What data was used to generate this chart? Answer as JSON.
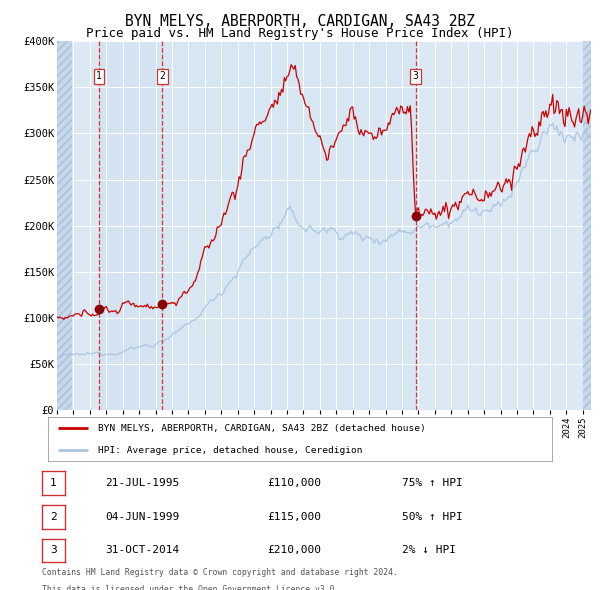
{
  "title": "BYN MELYS, ABERPORTH, CARDIGAN, SA43 2BZ",
  "subtitle": "Price paid vs. HM Land Registry's House Price Index (HPI)",
  "title_fontsize": 10.5,
  "subtitle_fontsize": 9.0,
  "background_color": "#ffffff",
  "plot_bg_color": "#dce9f5",
  "grid_color": "#ffffff",
  "ylim": [
    0,
    400000
  ],
  "yticks": [
    0,
    50000,
    100000,
    150000,
    200000,
    250000,
    300000,
    350000,
    400000
  ],
  "ytick_labels": [
    "£0",
    "£50K",
    "£100K",
    "£150K",
    "£200K",
    "£250K",
    "£300K",
    "£350K",
    "£400K"
  ],
  "hpi_color": "#aac4e0",
  "price_color": "#cc0000",
  "sale_dot_color": "#8b0000",
  "sale1_date": 1995.55,
  "sale1_price": 110000,
  "sale2_date": 1999.42,
  "sale2_price": 115000,
  "sale3_date": 2014.83,
  "sale3_price": 210000,
  "legend_line1": "BYN MELYS, ABERPORTH, CARDIGAN, SA43 2BZ (detached house)",
  "legend_line2": "HPI: Average price, detached house, Ceredigion",
  "table_rows": [
    {
      "num": "1",
      "date": "21-JUL-1995",
      "price": "£110,000",
      "pct": "75%",
      "arrow": "↑",
      "label": "HPI"
    },
    {
      "num": "2",
      "date": "04-JUN-1999",
      "price": "£115,000",
      "pct": "50%",
      "arrow": "↑",
      "label": "HPI"
    },
    {
      "num": "3",
      "date": "31-OCT-2014",
      "price": "£210,000",
      "pct": "2%",
      "arrow": "↓",
      "label": "HPI"
    }
  ],
  "footnote1": "Contains HM Land Registry data © Crown copyright and database right 2024.",
  "footnote2": "This data is licensed under the Open Government Licence v3.0.",
  "xmin": 1993.0,
  "xmax": 2025.5,
  "hpi_keypoints": [
    [
      1993.0,
      58000
    ],
    [
      1995.0,
      60000
    ],
    [
      1997.0,
      65000
    ],
    [
      1999.0,
      72000
    ],
    [
      2001.0,
      90000
    ],
    [
      2003.0,
      130000
    ],
    [
      2005.0,
      175000
    ],
    [
      2007.0,
      210000
    ],
    [
      2008.5,
      195000
    ],
    [
      2010.0,
      195000
    ],
    [
      2012.0,
      185000
    ],
    [
      2014.0,
      195000
    ],
    [
      2016.0,
      205000
    ],
    [
      2018.0,
      215000
    ],
    [
      2020.0,
      215000
    ],
    [
      2021.5,
      265000
    ],
    [
      2023.0,
      305000
    ],
    [
      2024.0,
      300000
    ],
    [
      2025.5,
      295000
    ]
  ],
  "price_keypoints": [
    [
      1993.0,
      95000
    ],
    [
      1994.5,
      100000
    ],
    [
      1995.55,
      110000
    ],
    [
      1996.5,
      108000
    ],
    [
      1997.5,
      115000
    ],
    [
      1998.5,
      115000
    ],
    [
      1999.42,
      115000
    ],
    [
      2000.5,
      120000
    ],
    [
      2001.5,
      145000
    ],
    [
      2002.5,
      185000
    ],
    [
      2003.5,
      225000
    ],
    [
      2004.5,
      275000
    ],
    [
      2005.5,
      320000
    ],
    [
      2006.5,
      340000
    ],
    [
      2007.0,
      355000
    ],
    [
      2007.5,
      345000
    ],
    [
      2008.0,
      340000
    ],
    [
      2008.5,
      320000
    ],
    [
      2009.0,
      295000
    ],
    [
      2009.5,
      275000
    ],
    [
      2010.0,
      295000
    ],
    [
      2010.5,
      310000
    ],
    [
      2011.0,
      325000
    ],
    [
      2011.5,
      305000
    ],
    [
      2012.0,
      310000
    ],
    [
      2012.5,
      295000
    ],
    [
      2013.0,
      300000
    ],
    [
      2013.5,
      310000
    ],
    [
      2014.0,
      330000
    ],
    [
      2014.5,
      340000
    ],
    [
      2014.83,
      210000
    ],
    [
      2015.0,
      210000
    ],
    [
      2015.5,
      205000
    ],
    [
      2016.0,
      210000
    ],
    [
      2016.5,
      215000
    ],
    [
      2017.0,
      220000
    ],
    [
      2018.0,
      230000
    ],
    [
      2019.0,
      240000
    ],
    [
      2020.0,
      240000
    ],
    [
      2021.0,
      265000
    ],
    [
      2022.0,
      295000
    ],
    [
      2023.0,
      310000
    ],
    [
      2024.0,
      305000
    ],
    [
      2025.0,
      300000
    ],
    [
      2025.5,
      295000
    ]
  ]
}
